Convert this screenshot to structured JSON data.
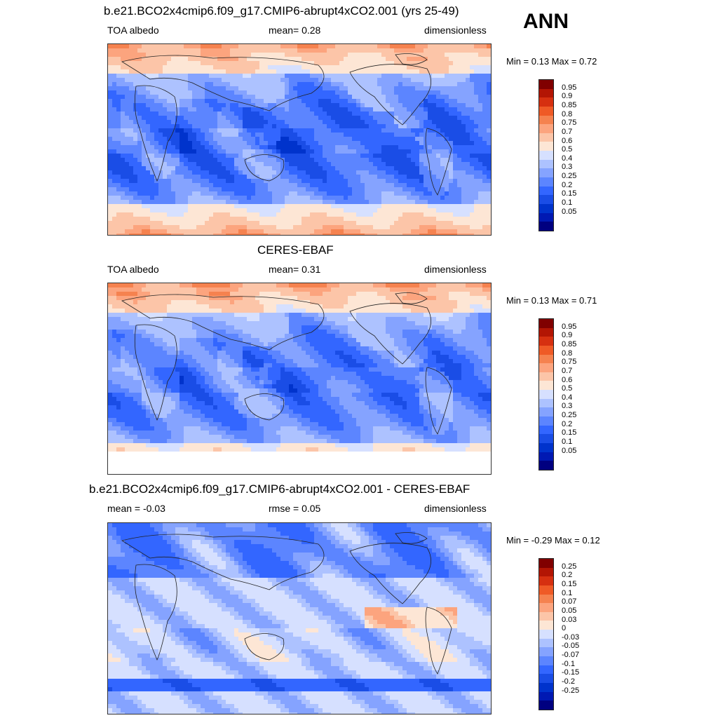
{
  "season": "ANN",
  "palette": [
    "#000080",
    "#0019b3",
    "#0033cc",
    "#1a4de6",
    "#3366ff",
    "#5c85ff",
    "#85a3ff",
    "#adc2ff",
    "#d6e0ff",
    "#fde6d5",
    "#fcc5a8",
    "#fca47e",
    "#f5824f",
    "#ef5a26",
    "#d63010",
    "#b31504",
    "#800000"
  ],
  "panels": [
    {
      "title": "b.e21.BCO2x4cmip6.f09_g17.CMIP6-abrupt4xCO2.001 (yrs 25-49)",
      "left_label": "TOA albedo",
      "center_label": "mean=   0.28",
      "right_label": "dimensionless",
      "minmax": "Min =   0.13 Max =   0.72",
      "levels": [
        "0.95",
        "0.9",
        "0.85",
        "0.8",
        "0.75",
        "0.7",
        "0.6",
        "0.5",
        "0.4",
        "0.3",
        "0.25",
        "0.2",
        "0.15",
        "0.1",
        "0.05"
      ],
      "kind": "model"
    },
    {
      "title": "CERES-EBAF",
      "left_label": "TOA albedo",
      "center_label": "mean=   0.31",
      "right_label": "dimensionless",
      "minmax": "Min =   0.13 Max =   0.71",
      "levels": [
        "0.95",
        "0.9",
        "0.85",
        "0.8",
        "0.75",
        "0.7",
        "0.6",
        "0.5",
        "0.4",
        "0.3",
        "0.25",
        "0.2",
        "0.15",
        "0.1",
        "0.05"
      ],
      "kind": "obs"
    },
    {
      "title": "b.e21.BCO2x4cmip6.f09_g17.CMIP6-abrupt4xCO2.001 - CERES-EBAF",
      "left_label": "mean =  -0.03",
      "center_label": "rmse =   0.05",
      "right_label": "dimensionless",
      "minmax": "Min =  -0.29 Max =   0.12",
      "levels": [
        "0.25",
        "0.2",
        "0.15",
        "0.1",
        "0.07",
        "0.05",
        "0.03",
        "0",
        "-0.03",
        "-0.05",
        "-0.07",
        "-0.1",
        "-0.15",
        "-0.2",
        "-0.25"
      ],
      "kind": "diff"
    }
  ]
}
